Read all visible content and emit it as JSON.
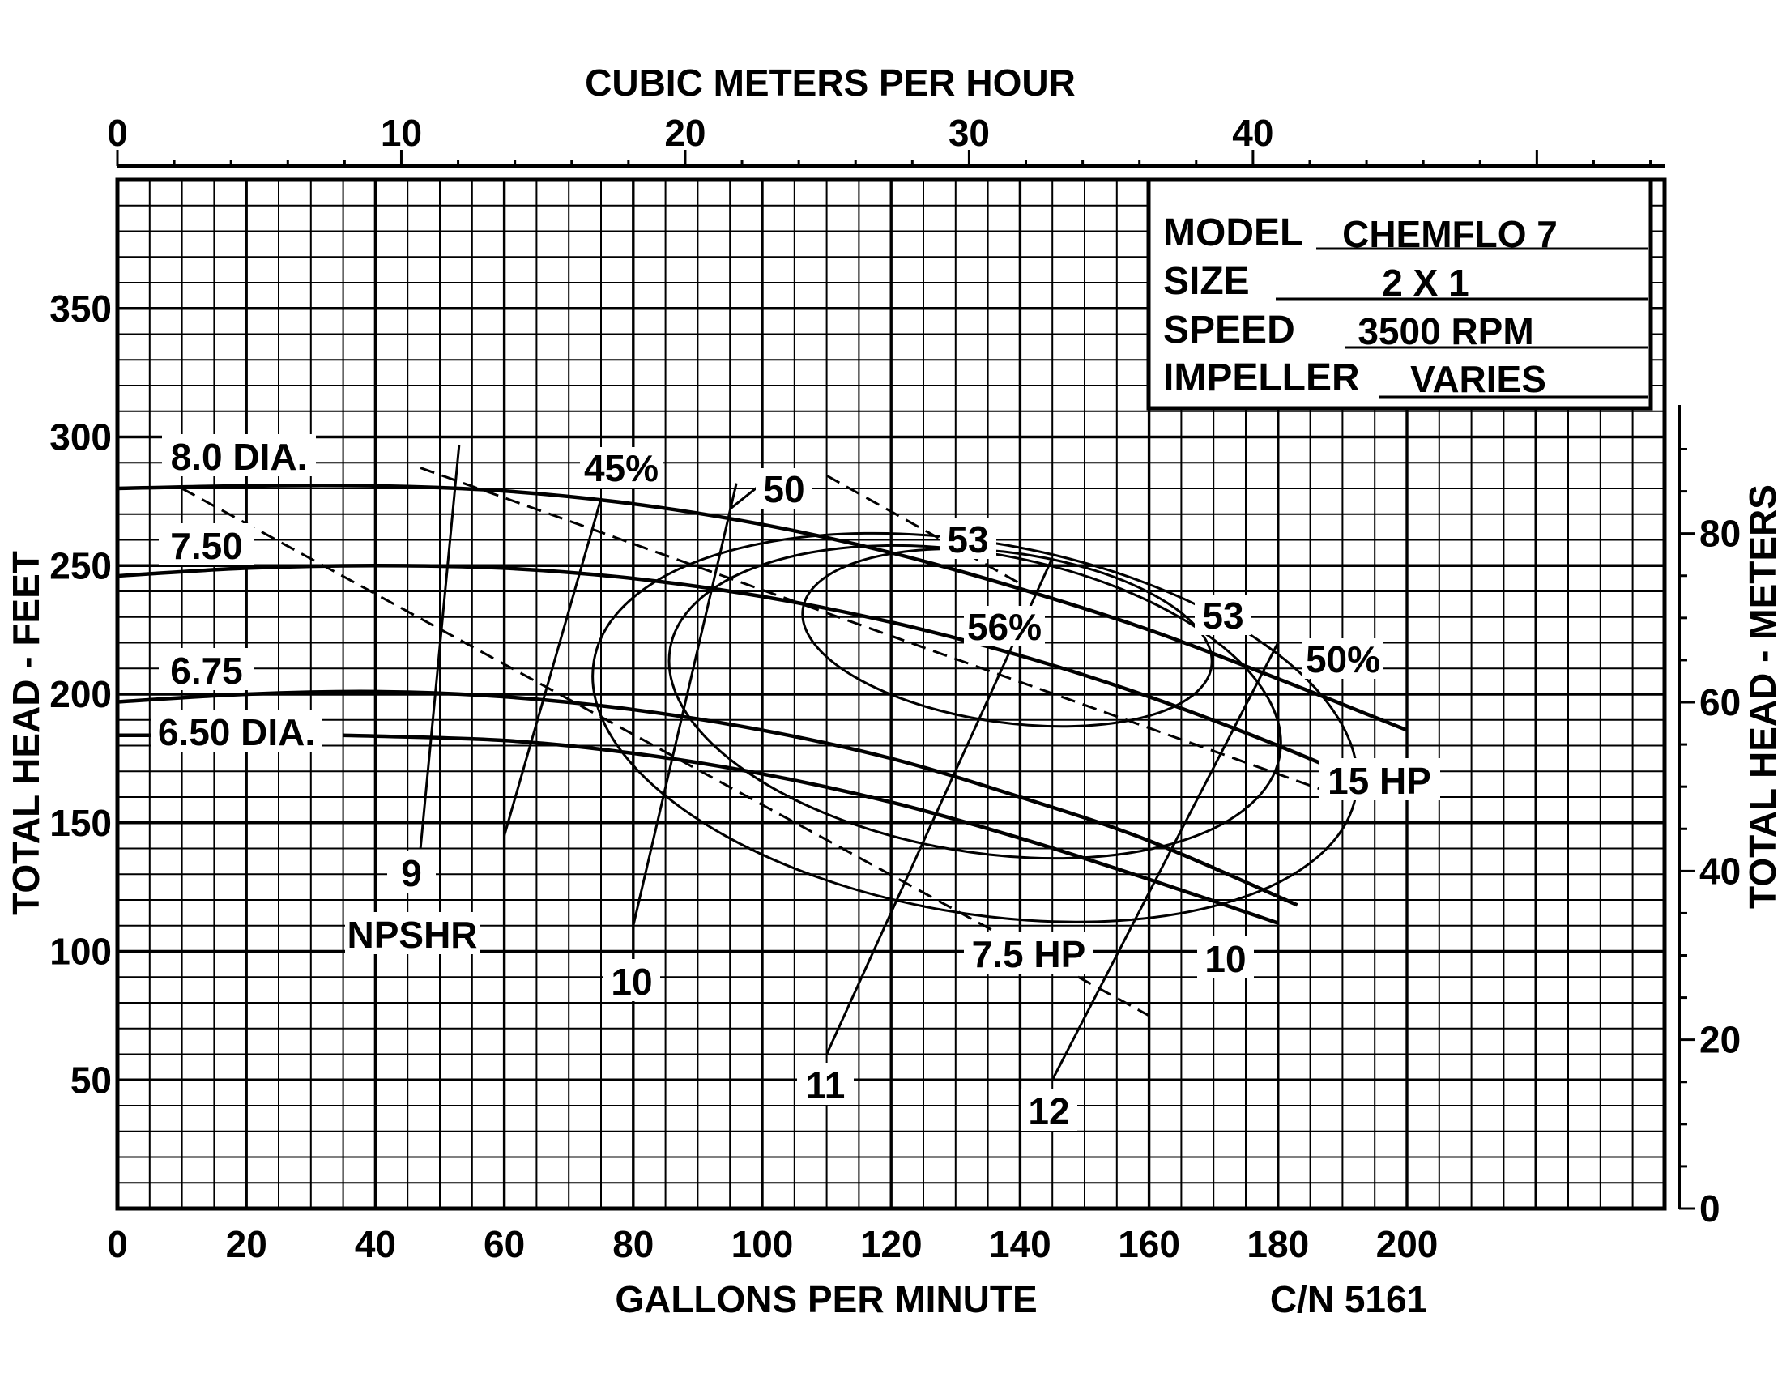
{
  "chart_data": {
    "type": "line",
    "title": "",
    "xlabel": "GALLONS PER MINUTE",
    "ylabel": "TOTAL HEAD - FEET",
    "x2label": "CUBIC METERS PER HOUR",
    "y2label": "TOTAL HEAD - METERS",
    "xlim": [
      0,
      240
    ],
    "ylim": [
      0,
      400
    ],
    "x_ticks": [
      0,
      20,
      40,
      60,
      80,
      100,
      120,
      140,
      160,
      180,
      200
    ],
    "y_ticks": [
      50,
      100,
      150,
      200,
      250,
      300,
      350
    ],
    "x2_ticks": [
      0,
      10,
      20,
      30,
      40
    ],
    "y2_ticks": [
      0,
      20,
      40,
      60,
      80
    ],
    "grid": true,
    "catalog_number": "C/N 5161",
    "info_box": {
      "rows": [
        {
          "label": "MODEL",
          "value": "CHEMFLO 7"
        },
        {
          "label": "SIZE",
          "value": "2 X 1"
        },
        {
          "label": "SPEED",
          "value": "3500 RPM"
        },
        {
          "label": "IMPELLER",
          "value": "VARIES"
        }
      ]
    },
    "impeller_curves": [
      {
        "name": "8.0 DIA.",
        "x": [
          0,
          20,
          40,
          60,
          80,
          100,
          120,
          140,
          160,
          180,
          200
        ],
        "y": [
          280,
          281,
          281,
          279,
          274,
          266,
          255,
          241,
          225,
          206,
          186
        ]
      },
      {
        "name": "7.50",
        "x": [
          0,
          20,
          40,
          60,
          80,
          100,
          120,
          140,
          160,
          180,
          197
        ],
        "y": [
          246,
          249,
          250,
          249,
          245,
          238,
          228,
          215,
          199,
          180,
          162
        ]
      },
      {
        "name": "6.75",
        "x": [
          0,
          20,
          40,
          60,
          80,
          100,
          120,
          140,
          160,
          183
        ],
        "y": [
          197,
          200,
          201,
          199,
          194,
          186,
          175,
          160,
          143,
          118
        ]
      },
      {
        "name": "6.50 DIA.",
        "x": [
          35,
          60,
          80,
          100,
          120,
          140,
          160,
          180
        ],
        "y": [
          184,
          182,
          177,
          169,
          158,
          144,
          128,
          111
        ]
      }
    ],
    "efficiency_labels": [
      "45%",
      "50",
      "53",
      "56%",
      "53",
      "50%"
    ],
    "horsepower_labels": [
      "15 HP",
      "7.5 HP"
    ],
    "npshr_labels": [
      "9",
      "10",
      "11",
      "12",
      "10"
    ],
    "npshr_title": "NPSHR"
  }
}
